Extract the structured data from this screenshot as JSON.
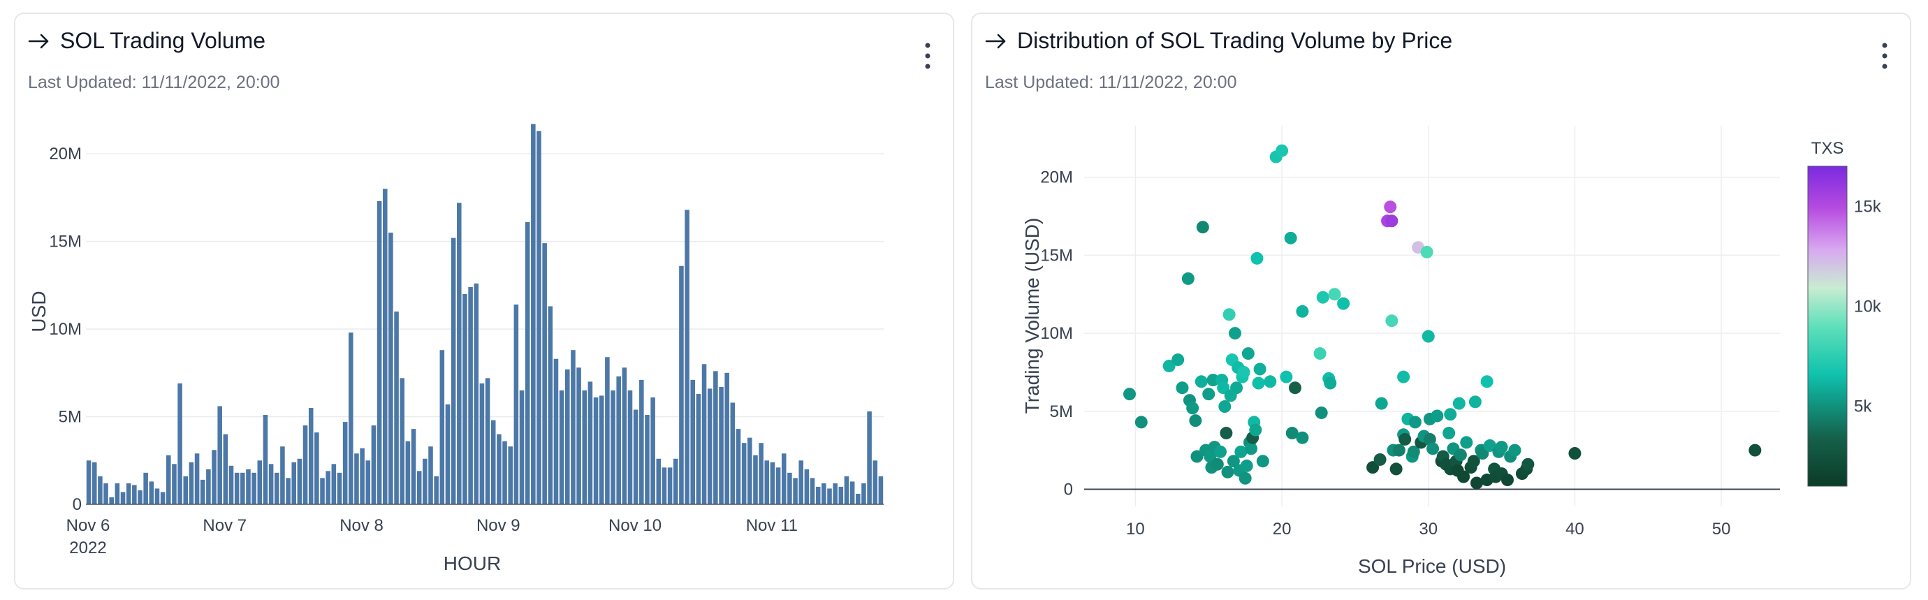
{
  "left_card": {
    "title": "SOL Trading Volume",
    "updated": "Last Updated: 11/11/2022, 20:00"
  },
  "right_card": {
    "title": "Distribution of SOL Trading Volume by Price",
    "updated": "Last Updated: 11/11/2022, 20:00"
  },
  "chart_data": [
    {
      "type": "bar",
      "title": "SOL Trading Volume",
      "xlabel": "HOUR",
      "ylabel": "USD",
      "ylim": [
        0,
        22000000
      ],
      "yticks": [
        0,
        5000000,
        10000000,
        15000000,
        20000000
      ],
      "ytick_labels": [
        "0",
        "5M",
        "10M",
        "15M",
        "20M"
      ],
      "xtick_labels": [
        {
          "line1": "Nov 6",
          "line2": "2022"
        },
        {
          "line1": "Nov 7",
          "line2": ""
        },
        {
          "line1": "Nov 8",
          "line2": ""
        },
        {
          "line1": "Nov 9",
          "line2": ""
        },
        {
          "line1": "Nov 10",
          "line2": ""
        },
        {
          "line1": "Nov 11",
          "line2": ""
        }
      ],
      "bars_per_day": 24,
      "bar_color": "#4c78a8",
      "grid": true,
      "values": [
        2.5,
        2.4,
        1.6,
        1.2,
        0.4,
        1.2,
        0.7,
        1.2,
        1.1,
        0.8,
        1.8,
        1.3,
        0.9,
        0.7,
        2.8,
        2.3,
        6.9,
        1.6,
        2.4,
        2.9,
        1.4,
        2.0,
        3.1,
        5.6,
        4.0,
        2.2,
        1.8,
        1.8,
        2.0,
        1.8,
        2.5,
        5.1,
        2.3,
        1.8,
        3.3,
        1.5,
        2.4,
        2.6,
        4.5,
        5.5,
        4.1,
        1.5,
        1.9,
        2.3,
        1.8,
        4.7,
        9.8,
        2.9,
        3.2,
        2.5,
        4.5,
        17.3,
        18.0,
        15.5,
        11.0,
        7.2,
        3.6,
        4.3,
        1.9,
        2.6,
        3.3,
        1.6,
        8.8,
        5.7,
        15.2,
        17.2,
        12.0,
        12.4,
        12.6,
        6.9,
        7.2,
        4.8,
        4.0,
        3.6,
        3.3,
        11.4,
        6.5,
        16.1,
        21.7,
        21.3,
        14.9,
        11.3,
        8.3,
        6.5,
        7.7,
        8.8,
        7.8,
        6.5,
        7.0,
        6.1,
        6.2,
        8.4,
        6.5,
        7.3,
        7.8,
        6.5,
        5.4,
        7.1,
        5.1,
        6.1,
        2.6,
        2.1,
        2.1,
        2.6,
        13.6,
        16.8,
        7.1,
        6.3,
        8.0,
        6.6,
        7.6,
        6.7,
        7.5,
        5.8,
        4.3,
        3.5,
        3.8,
        2.8,
        3.5,
        2.5,
        2.4,
        2.1,
        2.9,
        1.8,
        1.5,
        2.5,
        2.0,
        1.5,
        1.0,
        1.2,
        0.9,
        1.2,
        1.0,
        1.6,
        1.3,
        0.6,
        1.2,
        5.3,
        2.5,
        1.6
      ]
    },
    {
      "type": "scatter",
      "title": "Distribution of SOL Trading Volume by Price",
      "xlabel": "SOL Price (USD)",
      "ylabel": "Trading Volume (USD)",
      "xlim": [
        6.5,
        54
      ],
      "ylim": [
        -1100000,
        23300000
      ],
      "xticks": [
        10,
        20,
        30,
        40,
        50
      ],
      "yticks": [
        0,
        5000000,
        10000000,
        15000000,
        20000000
      ],
      "ytick_labels": [
        "0",
        "5M",
        "10M",
        "15M",
        "20M"
      ],
      "grid": true,
      "colorbar": {
        "title": "TXS",
        "range": [
          1000,
          17000
        ],
        "ticks": [
          5000,
          10000,
          15000
        ],
        "tick_labels": [
          "5k",
          "10k",
          "15k"
        ],
        "stops": [
          {
            "v": 0.0,
            "color": "#0b3b27"
          },
          {
            "v": 0.15,
            "color": "#16604a"
          },
          {
            "v": 0.28,
            "color": "#0fa08c"
          },
          {
            "v": 0.35,
            "color": "#10c2ad"
          },
          {
            "v": 0.5,
            "color": "#5fe0ba"
          },
          {
            "v": 0.62,
            "color": "#c8ecd2"
          },
          {
            "v": 0.74,
            "color": "#d8a8f0"
          },
          {
            "v": 0.87,
            "color": "#b64bdf"
          },
          {
            "v": 1.0,
            "color": "#7b2ae0"
          }
        ]
      },
      "points": [
        {
          "x": 9.6,
          "y": 6.1,
          "t": 5200
        },
        {
          "x": 10.4,
          "y": 4.3,
          "t": 5000
        },
        {
          "x": 12.3,
          "y": 7.9,
          "t": 6200
        },
        {
          "x": 12.9,
          "y": 8.3,
          "t": 5800
        },
        {
          "x": 13.2,
          "y": 6.5,
          "t": 5400
        },
        {
          "x": 13.6,
          "y": 13.5,
          "t": 5300
        },
        {
          "x": 13.7,
          "y": 5.7,
          "t": 5100
        },
        {
          "x": 13.9,
          "y": 5.2,
          "t": 5300
        },
        {
          "x": 14.2,
          "y": 2.1,
          "t": 5000
        },
        {
          "x": 14.1,
          "y": 4.4,
          "t": 4900
        },
        {
          "x": 14.6,
          "y": 16.8,
          "t": 4700
        },
        {
          "x": 14.5,
          "y": 6.9,
          "t": 6000
        },
        {
          "x": 14.8,
          "y": 2.5,
          "t": 5200
        },
        {
          "x": 15.0,
          "y": 6.1,
          "t": 5400
        },
        {
          "x": 15.3,
          "y": 7.0,
          "t": 5600
        },
        {
          "x": 15.1,
          "y": 2.1,
          "t": 5300
        },
        {
          "x": 15.2,
          "y": 1.4,
          "t": 5000
        },
        {
          "x": 15.4,
          "y": 2.7,
          "t": 5200
        },
        {
          "x": 15.6,
          "y": 1.6,
          "t": 4800
        },
        {
          "x": 15.8,
          "y": 2.4,
          "t": 5500
        },
        {
          "x": 15.9,
          "y": 7.0,
          "t": 6100
        },
        {
          "x": 16.0,
          "y": 6.5,
          "t": 6300
        },
        {
          "x": 16.1,
          "y": 5.3,
          "t": 5700
        },
        {
          "x": 16.2,
          "y": 3.6,
          "t": 3300
        },
        {
          "x": 16.3,
          "y": 1.1,
          "t": 5000
        },
        {
          "x": 16.4,
          "y": 11.2,
          "t": 7600
        },
        {
          "x": 16.5,
          "y": 6.0,
          "t": 5900
        },
        {
          "x": 16.6,
          "y": 8.3,
          "t": 6800
        },
        {
          "x": 16.7,
          "y": 1.8,
          "t": 5200
        },
        {
          "x": 16.8,
          "y": 10.0,
          "t": 5500
        },
        {
          "x": 16.9,
          "y": 6.5,
          "t": 5800
        },
        {
          "x": 17.0,
          "y": 7.8,
          "t": 6400
        },
        {
          "x": 17.1,
          "y": 1.2,
          "t": 5300
        },
        {
          "x": 17.2,
          "y": 2.4,
          "t": 5600
        },
        {
          "x": 17.3,
          "y": 7.2,
          "t": 6700
        },
        {
          "x": 17.4,
          "y": 7.5,
          "t": 6900
        },
        {
          "x": 17.5,
          "y": 0.7,
          "t": 5100
        },
        {
          "x": 17.6,
          "y": 1.5,
          "t": 5400
        },
        {
          "x": 17.7,
          "y": 8.7,
          "t": 5700
        },
        {
          "x": 17.8,
          "y": 3.0,
          "t": 4900
        },
        {
          "x": 17.9,
          "y": 2.6,
          "t": 5300
        },
        {
          "x": 18.0,
          "y": 3.3,
          "t": 3200
        },
        {
          "x": 18.1,
          "y": 4.3,
          "t": 6300
        },
        {
          "x": 18.2,
          "y": 3.8,
          "t": 5700
        },
        {
          "x": 18.3,
          "y": 14.8,
          "t": 6600
        },
        {
          "x": 18.4,
          "y": 6.8,
          "t": 6500
        },
        {
          "x": 18.5,
          "y": 7.7,
          "t": 6000
        },
        {
          "x": 18.7,
          "y": 1.8,
          "t": 5200
        },
        {
          "x": 19.2,
          "y": 6.9,
          "t": 6300
        },
        {
          "x": 19.6,
          "y": 21.3,
          "t": 6800
        },
        {
          "x": 20.0,
          "y": 21.7,
          "t": 6900
        },
        {
          "x": 20.3,
          "y": 7.2,
          "t": 6600
        },
        {
          "x": 20.6,
          "y": 16.1,
          "t": 5900
        },
        {
          "x": 20.7,
          "y": 3.6,
          "t": 4800
        },
        {
          "x": 20.9,
          "y": 6.5,
          "t": 3400
        },
        {
          "x": 21.4,
          "y": 3.3,
          "t": 5000
        },
        {
          "x": 21.4,
          "y": 11.4,
          "t": 6100
        },
        {
          "x": 22.6,
          "y": 8.7,
          "t": 7900
        },
        {
          "x": 22.7,
          "y": 4.9,
          "t": 5000
        },
        {
          "x": 22.8,
          "y": 12.3,
          "t": 7000
        },
        {
          "x": 23.2,
          "y": 7.1,
          "t": 6400
        },
        {
          "x": 23.3,
          "y": 6.8,
          "t": 5900
        },
        {
          "x": 23.6,
          "y": 12.5,
          "t": 8300
        },
        {
          "x": 24.2,
          "y": 11.9,
          "t": 6500
        },
        {
          "x": 26.2,
          "y": 1.4,
          "t": 2200
        },
        {
          "x": 26.7,
          "y": 1.9,
          "t": 3100
        },
        {
          "x": 26.8,
          "y": 5.5,
          "t": 5700
        },
        {
          "x": 27.2,
          "y": 17.2,
          "t": 15300
        },
        {
          "x": 27.4,
          "y": 18.1,
          "t": 14800
        },
        {
          "x": 27.5,
          "y": 17.2,
          "t": 15800
        },
        {
          "x": 27.5,
          "y": 10.8,
          "t": 8300
        },
        {
          "x": 27.6,
          "y": 2.5,
          "t": 5000
        },
        {
          "x": 27.8,
          "y": 1.3,
          "t": 2400
        },
        {
          "x": 28.0,
          "y": 2.5,
          "t": 4400
        },
        {
          "x": 28.3,
          "y": 3.5,
          "t": 5300
        },
        {
          "x": 28.3,
          "y": 7.2,
          "t": 6400
        },
        {
          "x": 28.4,
          "y": 3.2,
          "t": 3100
        },
        {
          "x": 28.6,
          "y": 4.5,
          "t": 6100
        },
        {
          "x": 28.9,
          "y": 2.1,
          "t": 5200
        },
        {
          "x": 29.0,
          "y": 2.4,
          "t": 4800
        },
        {
          "x": 29.1,
          "y": 4.3,
          "t": 5300
        },
        {
          "x": 29.3,
          "y": 15.5,
          "t": 12200
        },
        {
          "x": 29.5,
          "y": 3.0,
          "t": 2800
        },
        {
          "x": 29.7,
          "y": 3.4,
          "t": 5100
        },
        {
          "x": 29.9,
          "y": 15.2,
          "t": 8500
        },
        {
          "x": 30.0,
          "y": 9.8,
          "t": 6300
        },
        {
          "x": 30.1,
          "y": 4.5,
          "t": 5200
        },
        {
          "x": 30.1,
          "y": 3.2,
          "t": 4400
        },
        {
          "x": 30.3,
          "y": 2.6,
          "t": 5000
        },
        {
          "x": 30.6,
          "y": 4.7,
          "t": 5400
        },
        {
          "x": 30.9,
          "y": 1.8,
          "t": 2100
        },
        {
          "x": 31.0,
          "y": 2.1,
          "t": 3000
        },
        {
          "x": 31.2,
          "y": 1.6,
          "t": 2400
        },
        {
          "x": 31.4,
          "y": 3.6,
          "t": 5600
        },
        {
          "x": 31.5,
          "y": 4.8,
          "t": 5900
        },
        {
          "x": 31.5,
          "y": 1.3,
          "t": 2300
        },
        {
          "x": 31.7,
          "y": 2.6,
          "t": 5100
        },
        {
          "x": 31.9,
          "y": 1.8,
          "t": 2700
        },
        {
          "x": 32.0,
          "y": 1.2,
          "t": 2000
        },
        {
          "x": 32.1,
          "y": 5.5,
          "t": 6200
        },
        {
          "x": 32.2,
          "y": 2.2,
          "t": 4600
        },
        {
          "x": 32.4,
          "y": 0.8,
          "t": 1900
        },
        {
          "x": 32.6,
          "y": 3.0,
          "t": 5400
        },
        {
          "x": 32.9,
          "y": 1.4,
          "t": 2200
        },
        {
          "x": 33.1,
          "y": 1.8,
          "t": 2500
        },
        {
          "x": 33.2,
          "y": 5.6,
          "t": 6100
        },
        {
          "x": 33.3,
          "y": 0.4,
          "t": 1800
        },
        {
          "x": 33.6,
          "y": 2.5,
          "t": 5000
        },
        {
          "x": 33.7,
          "y": 2.3,
          "t": 4700
        },
        {
          "x": 34.0,
          "y": 0.6,
          "t": 1900
        },
        {
          "x": 34.0,
          "y": 6.9,
          "t": 6600
        },
        {
          "x": 34.2,
          "y": 2.8,
          "t": 5500
        },
        {
          "x": 34.5,
          "y": 1.3,
          "t": 2600
        },
        {
          "x": 34.6,
          "y": 0.8,
          "t": 2100
        },
        {
          "x": 34.8,
          "y": 2.4,
          "t": 5100
        },
        {
          "x": 35.0,
          "y": 1.0,
          "t": 2300
        },
        {
          "x": 35.0,
          "y": 2.7,
          "t": 5300
        },
        {
          "x": 35.4,
          "y": 0.6,
          "t": 1900
        },
        {
          "x": 35.6,
          "y": 2.1,
          "t": 4900
        },
        {
          "x": 35.9,
          "y": 2.5,
          "t": 5200
        },
        {
          "x": 36.4,
          "y": 1.0,
          "t": 2000
        },
        {
          "x": 36.7,
          "y": 1.3,
          "t": 2200
        },
        {
          "x": 36.8,
          "y": 1.6,
          "t": 2800
        },
        {
          "x": 40.0,
          "y": 2.3,
          "t": 2400
        },
        {
          "x": 52.3,
          "y": 2.5,
          "t": 2400
        }
      ]
    }
  ]
}
